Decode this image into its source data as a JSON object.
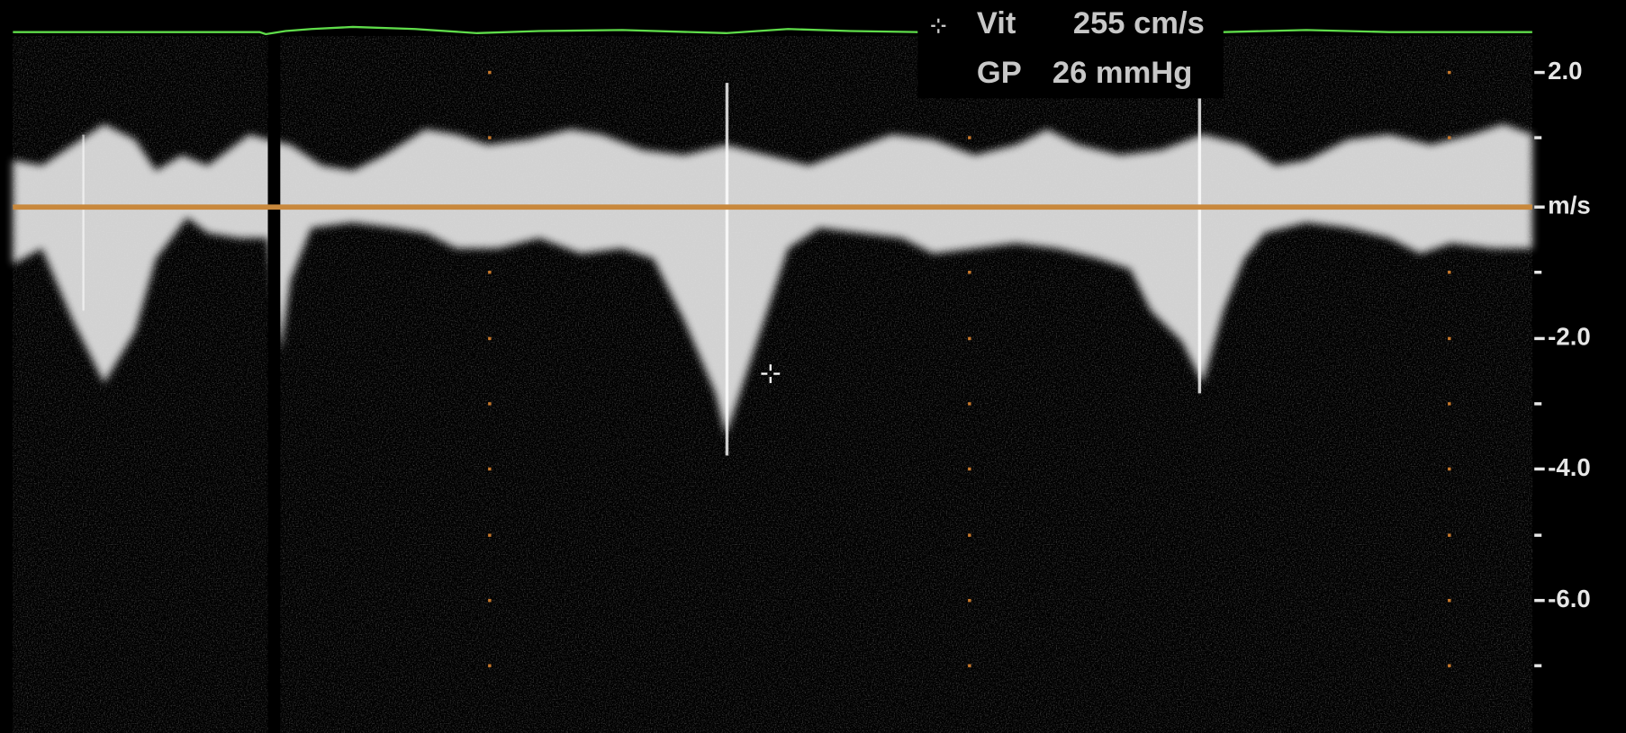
{
  "measurements": {
    "velocity": {
      "label": "Vit",
      "value": "255 cm/s"
    },
    "gradient": {
      "label": "GP",
      "value": "26 mmHg"
    }
  },
  "scale": {
    "labels": [
      "2.0",
      "m/s",
      "-2.0",
      "-4.0",
      "-6.0"
    ]
  }
}
